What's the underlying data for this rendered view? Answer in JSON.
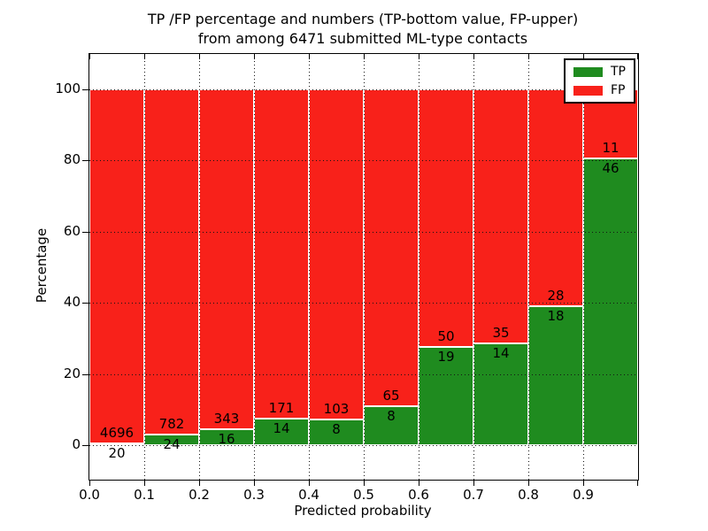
{
  "figure": {
    "title_line1": "TP /FP percentage and numbers (TP-bottom value, FP-upper)",
    "title_line2": "from among 6471 submitted ML-type contacts"
  },
  "chart_data": {
    "type": "bar",
    "stacked": true,
    "normalized_to": "percent (each bin totals 100%)",
    "title": "TP /FP percentage and numbers (TP-bottom value, FP-upper)\nfrom among 6471 submitted ML-type contacts",
    "xlabel": "Predicted probability",
    "ylabel": "Percentage",
    "total_contacts": 6471,
    "bin_starts": [
      0.0,
      0.1,
      0.2,
      0.3,
      0.4,
      0.5,
      0.6,
      0.7,
      0.8,
      0.9
    ],
    "bin_width": 0.1,
    "x_tick_labels": [
      "0.0",
      "0.1",
      "0.2",
      "0.3",
      "0.4",
      "0.5",
      "0.6",
      "0.7",
      "0.8",
      "0.9"
    ],
    "y_ticks": [
      0,
      20,
      40,
      60,
      80,
      100
    ],
    "xlim": [
      0.0,
      1.0
    ],
    "ylim": [
      -10,
      110
    ],
    "grid": true,
    "grid_style": "dotted black",
    "series": [
      {
        "name": "TP",
        "color": "#1f8b1f",
        "counts": [
          20,
          24,
          16,
          14,
          8,
          8,
          19,
          14,
          18,
          46
        ]
      },
      {
        "name": "FP",
        "color": "#f8211a",
        "counts": [
          4696,
          782,
          343,
          171,
          103,
          65,
          50,
          35,
          28,
          11
        ]
      }
    ],
    "tp_percent_of_bin": [
      0.4,
      3.0,
      4.5,
      7.6,
      7.2,
      11.0,
      27.5,
      28.6,
      39.1,
      80.7
    ],
    "legend": {
      "position": "upper right",
      "entries": [
        {
          "label": "TP",
          "color": "#1f8b1f"
        },
        {
          "label": "FP",
          "color": "#f8211a"
        }
      ]
    }
  }
}
